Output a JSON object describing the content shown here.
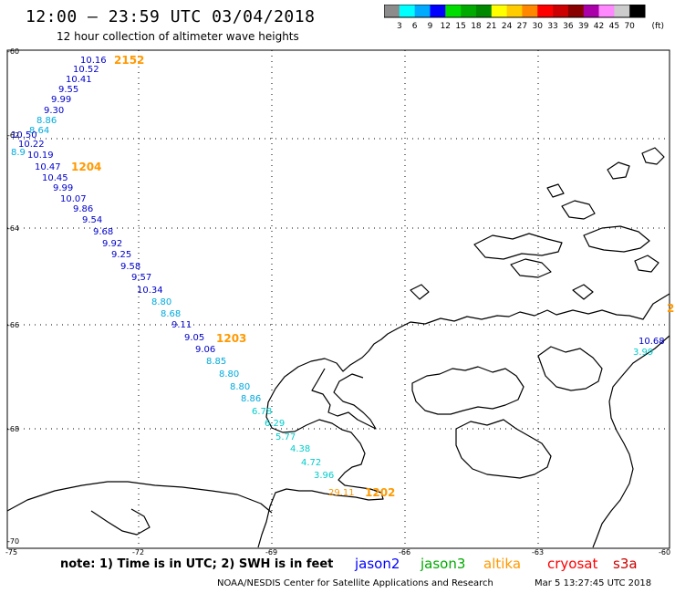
{
  "header": {
    "title": "12:00 – 23:59 UTC 03/04/2018",
    "subtitle": "12 hour collection of altimeter wave heights"
  },
  "colorbar": {
    "swatch_colors": [
      "#8c8c8c",
      "#00ffff",
      "#00aaff",
      "#0000ff",
      "#00dd00",
      "#00aa00",
      "#008800",
      "#ffff00",
      "#ffcc00",
      "#ff8800",
      "#ff0000",
      "#cc0000",
      "#880000",
      "#aa00aa",
      "#ff88ff",
      "#cccccc",
      "#000000"
    ],
    "labels": [
      "3",
      "6",
      "9",
      "12",
      "15",
      "18",
      "21",
      "24",
      "27",
      "30",
      "33",
      "36",
      "39",
      "42",
      "45",
      "70"
    ],
    "unit": "(ft)"
  },
  "axes": {
    "lat_labels": [
      "-60",
      "-62",
      "-64",
      "-66",
      "-68",
      "-70"
    ],
    "lon_labels": [
      "-75",
      "-72",
      "-69",
      "-66",
      "-63",
      "-60"
    ]
  },
  "passes": [
    {
      "label": "2152",
      "color": "#ff9900"
    },
    {
      "label": "1204",
      "color": "#ff9900"
    },
    {
      "label": "1203",
      "color": "#ff9900"
    },
    {
      "label": "1202",
      "color": "#ff9900"
    },
    {
      "label": "2",
      "color": "#ff9900"
    }
  ],
  "measurements": [
    {
      "value": "10.16",
      "color": "#0000cc"
    },
    {
      "value": "10.52",
      "color": "#0000cc"
    },
    {
      "value": "10.41",
      "color": "#0000cc"
    },
    {
      "value": "9.55",
      "color": "#0000cc"
    },
    {
      "value": "9.99",
      "color": "#0000cc"
    },
    {
      "value": "9.30",
      "color": "#0000cc"
    },
    {
      "value": "8.86",
      "color": "#00aadd"
    },
    {
      "value": "8.64",
      "color": "#00aadd"
    },
    {
      "value": "10.50",
      "color": "#0000cc"
    },
    {
      "value": "10.22",
      "color": "#0000cc"
    },
    {
      "value": "8.9",
      "color": "#00aadd"
    },
    {
      "value": "10.19",
      "color": "#0000cc"
    },
    {
      "value": "10.47",
      "color": "#0000cc"
    },
    {
      "value": "10.45",
      "color": "#0000cc"
    },
    {
      "value": "9.99",
      "color": "#0000cc"
    },
    {
      "value": "10.07",
      "color": "#0000cc"
    },
    {
      "value": "9.86",
      "color": "#0000cc"
    },
    {
      "value": "9.54",
      "color": "#0000cc"
    },
    {
      "value": "9.68",
      "color": "#0000cc"
    },
    {
      "value": "9.92",
      "color": "#0000cc"
    },
    {
      "value": "9.25",
      "color": "#0000cc"
    },
    {
      "value": "9.58",
      "color": "#0000cc"
    },
    {
      "value": "9.57",
      "color": "#0000cc"
    },
    {
      "value": "10.34",
      "color": "#0000cc"
    },
    {
      "value": "8.80",
      "color": "#00aadd"
    },
    {
      "value": "8.68",
      "color": "#00aadd"
    },
    {
      "value": "9.11",
      "color": "#0000cc"
    },
    {
      "value": "9.05",
      "color": "#0000cc"
    },
    {
      "value": "9.06",
      "color": "#0000cc"
    },
    {
      "value": "8.85",
      "color": "#00aadd"
    },
    {
      "value": "8.80",
      "color": "#00aadd"
    },
    {
      "value": "8.80",
      "color": "#00aadd"
    },
    {
      "value": "8.86",
      "color": "#00aadd"
    },
    {
      "value": "6.78",
      "color": "#00cccc"
    },
    {
      "value": "6.29",
      "color": "#00cccc"
    },
    {
      "value": "5.77",
      "color": "#00cccc"
    },
    {
      "value": "4.38",
      "color": "#00cccc"
    },
    {
      "value": "4.72",
      "color": "#00cccc"
    },
    {
      "value": "3.96",
      "color": "#00cccc"
    },
    {
      "value": "29.11",
      "color": "#ff9900"
    },
    {
      "value": "10.68",
      "color": "#0000cc"
    },
    {
      "value": "3.99",
      "color": "#00cccc"
    }
  ],
  "note": "note:  1) Time is in UTC;  2) SWH is in feet",
  "satellites": [
    {
      "name": "jason2",
      "color": "#0000ff"
    },
    {
      "name": "jason3",
      "color": "#00aa00"
    },
    {
      "name": "altika",
      "color": "#ff9900"
    },
    {
      "name": "cryosat",
      "color": "#ff0000"
    },
    {
      "name": "s3a",
      "color": "#cc0000"
    }
  ],
  "footer": {
    "credit": "NOAA/NESDIS Center for Satellite Applications and Research",
    "timestamp": "Mar  5 13:27:45 UTC 2018"
  }
}
